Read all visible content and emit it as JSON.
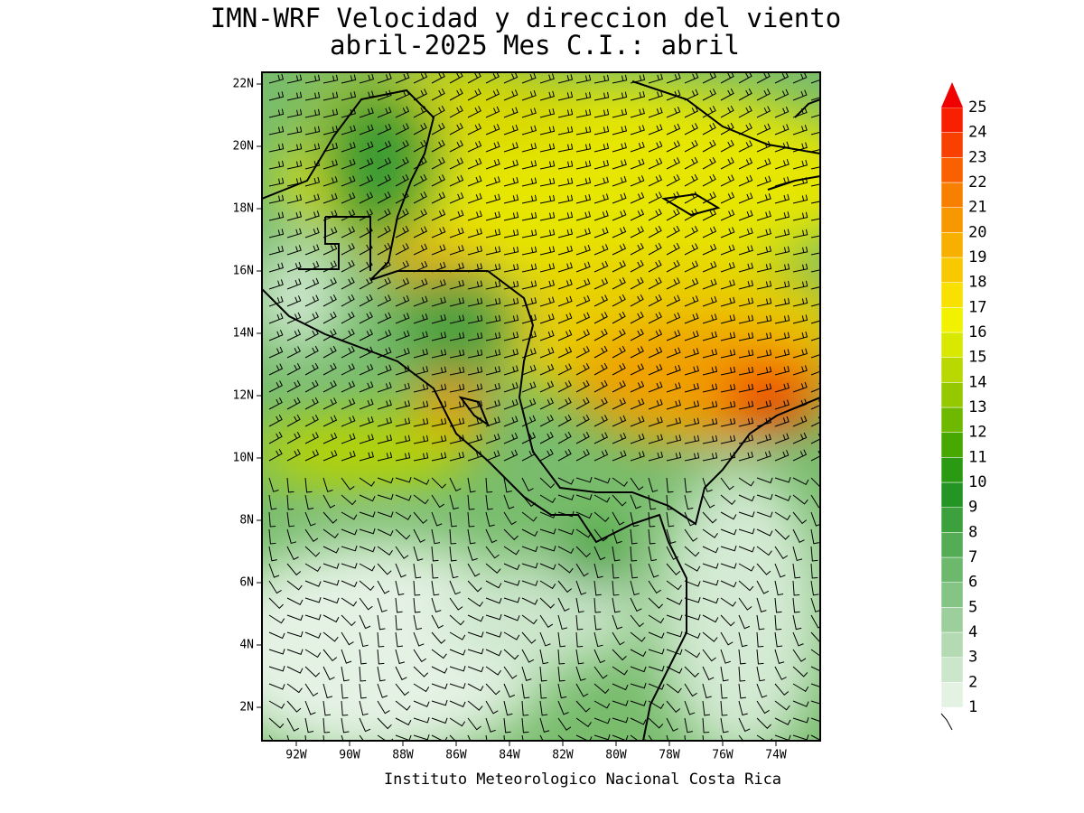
{
  "title": [
    "IMN-WRF Velocidad y direccion del viento",
    "abril-2025 Mes C.I.: abril"
  ],
  "map": {
    "lat_labels": [
      "22N",
      "20N",
      "18N",
      "16N",
      "14N",
      "12N",
      "10N",
      "8N",
      "6N",
      "4N",
      "2N"
    ],
    "lon_labels": [
      "92W",
      "90W",
      "88W",
      "86W",
      "84W",
      "82W",
      "80W",
      "78W",
      "76W",
      "74W"
    ]
  },
  "colorbar": {
    "labels": [
      1,
      2,
      3,
      4,
      5,
      6,
      7,
      8,
      9,
      10,
      11,
      12,
      13,
      14,
      15,
      16,
      17,
      18,
      19,
      20,
      21,
      22,
      23,
      24,
      25
    ],
    "colors": [
      "#e4f2e4",
      "#cce6cc",
      "#b4dab4",
      "#9ccf9c",
      "#84c484",
      "#6cb86c",
      "#54ac54",
      "#3ca03c",
      "#249424",
      "#2a9a12",
      "#46a800",
      "#6eb800",
      "#96c800",
      "#b8d800",
      "#d8e800",
      "#f2f200",
      "#f8e000",
      "#f8c800",
      "#f8b000",
      "#f89800",
      "#f88000",
      "#f86000",
      "#f84000",
      "#f82000",
      "#f00000"
    ]
  },
  "footer": "Instituto Meteorologico Nacional Costa Rica"
}
